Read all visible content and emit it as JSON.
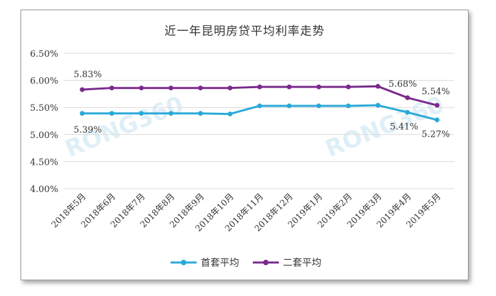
{
  "chart_data": {
    "type": "line",
    "title": "近一年昆明房贷平均利率走势",
    "categories": [
      "2018年5月",
      "2018年6月",
      "2018年7月",
      "2018年8月",
      "2018年9月",
      "2018年10月",
      "2018年11月",
      "2018年12月",
      "2019年1月",
      "2019年2月",
      "2019年3月",
      "2019年4月",
      "2019年5月"
    ],
    "y_ticks": [
      "4.00%",
      "4.50%",
      "5.00%",
      "5.50%",
      "6.00%",
      "6.50%"
    ],
    "ylim": [
      4.0,
      6.5
    ],
    "grid": true,
    "legend_position": "bottom",
    "watermark": "RONG360",
    "series": [
      {
        "name": "首套平均",
        "color": "#2aa9d8",
        "values": [
          5.39,
          5.39,
          5.39,
          5.39,
          5.39,
          5.38,
          5.53,
          5.53,
          5.53,
          5.53,
          5.54,
          5.41,
          5.27
        ],
        "labels": [
          {
            "index": 0,
            "text": "5.39%"
          },
          {
            "index": 11,
            "text": "5.41%"
          },
          {
            "index": 12,
            "text": "5.27%"
          }
        ]
      },
      {
        "name": "二套平均",
        "color": "#7a2b8c",
        "values": [
          5.83,
          5.86,
          5.86,
          5.86,
          5.86,
          5.86,
          5.88,
          5.88,
          5.88,
          5.88,
          5.89,
          5.68,
          5.54
        ],
        "labels": [
          {
            "index": 0,
            "text": "5.83%"
          },
          {
            "index": 11,
            "text": "5.68%"
          },
          {
            "index": 12,
            "text": "5.54%"
          }
        ]
      }
    ]
  }
}
